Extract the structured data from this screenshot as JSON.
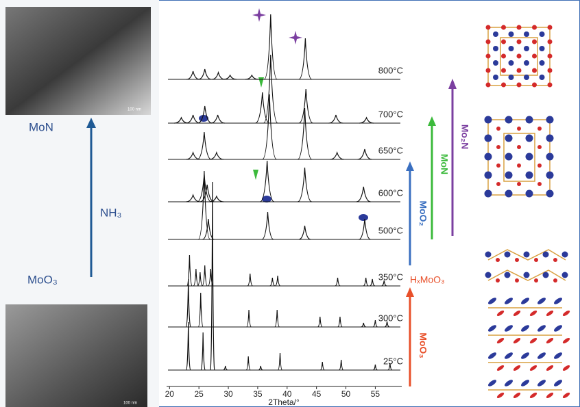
{
  "chart_data": {
    "type": "xrd-stack",
    "xlabel": "2Theta/°",
    "xlim": [
      19.5,
      59.5
    ],
    "xticks": [
      20,
      25,
      30,
      35,
      40,
      45,
      50,
      55
    ],
    "series": [
      {
        "name": "800°C",
        "color": "#111111",
        "x": [
          24,
          26,
          28.3,
          30.3,
          34,
          37.2,
          43.1
        ],
        "values": [
          12,
          15,
          10,
          6,
          6,
          95,
          60
        ]
      },
      {
        "name": "700°C",
        "color": "#111111",
        "x": [
          22,
          24,
          26,
          28.2,
          35.8,
          37.2,
          43.2,
          48.3,
          53.5
        ],
        "values": [
          8,
          12,
          25,
          12,
          45,
          100,
          50,
          12,
          8
        ]
      },
      {
        "name": "650°C",
        "color": "#111111",
        "x": [
          24,
          25.9,
          28,
          37,
          43,
          48.5,
          53.2
        ],
        "values": [
          10,
          40,
          10,
          95,
          75,
          10,
          15
        ]
      },
      {
        "name": "600°C",
        "color": "#111111",
        "x": [
          24,
          25.9,
          26.4,
          28,
          36.6,
          43,
          53
        ],
        "values": [
          10,
          40,
          25,
          8,
          60,
          50,
          22
        ]
      },
      {
        "name": "500°C",
        "color": "#111111",
        "x": [
          25.9,
          26.6,
          36.7,
          43,
          53.2
        ],
        "values": [
          100,
          30,
          40,
          20,
          30
        ]
      },
      {
        "name": "350°C",
        "color": "#111111",
        "x": [
          23.4,
          24.5,
          25.2,
          26,
          27,
          33.7,
          37.5,
          38.4,
          48.6,
          53.4,
          54.5,
          56.5
        ],
        "values": [
          45,
          25,
          20,
          30,
          25,
          18,
          12,
          15,
          12,
          12,
          10,
          8
        ]
      },
      {
        "name": "300°C",
        "color": "#111111",
        "x": [
          23.2,
          25.3,
          33.5,
          38.3,
          45.6,
          49,
          53,
          55,
          57
        ],
        "values": [
          70,
          50,
          25,
          25,
          15,
          15,
          6,
          10,
          8
        ]
      },
      {
        "name": "25°C",
        "color": "#111111",
        "x": [
          23.2,
          25.7,
          27.3,
          29.5,
          33.4,
          35.5,
          38.8,
          46,
          49.2,
          55,
          57.5
        ],
        "values": [
          70,
          55,
          275,
          6,
          20,
          6,
          25,
          12,
          15,
          8,
          10
        ]
      }
    ],
    "annotations": {
      "product": "MoN",
      "reagent": "NH₃",
      "precursor": "MoO₃",
      "scale_top": "100 nm",
      "scale_bottom": "100 nm",
      "phase_moo3": "MoO₃",
      "phase_hxmoo3": "HₓMoO₃",
      "phase_moo2": "MoO₂",
      "phase_mon": "MoN",
      "phase_mo2n": "Mo₂N"
    }
  }
}
